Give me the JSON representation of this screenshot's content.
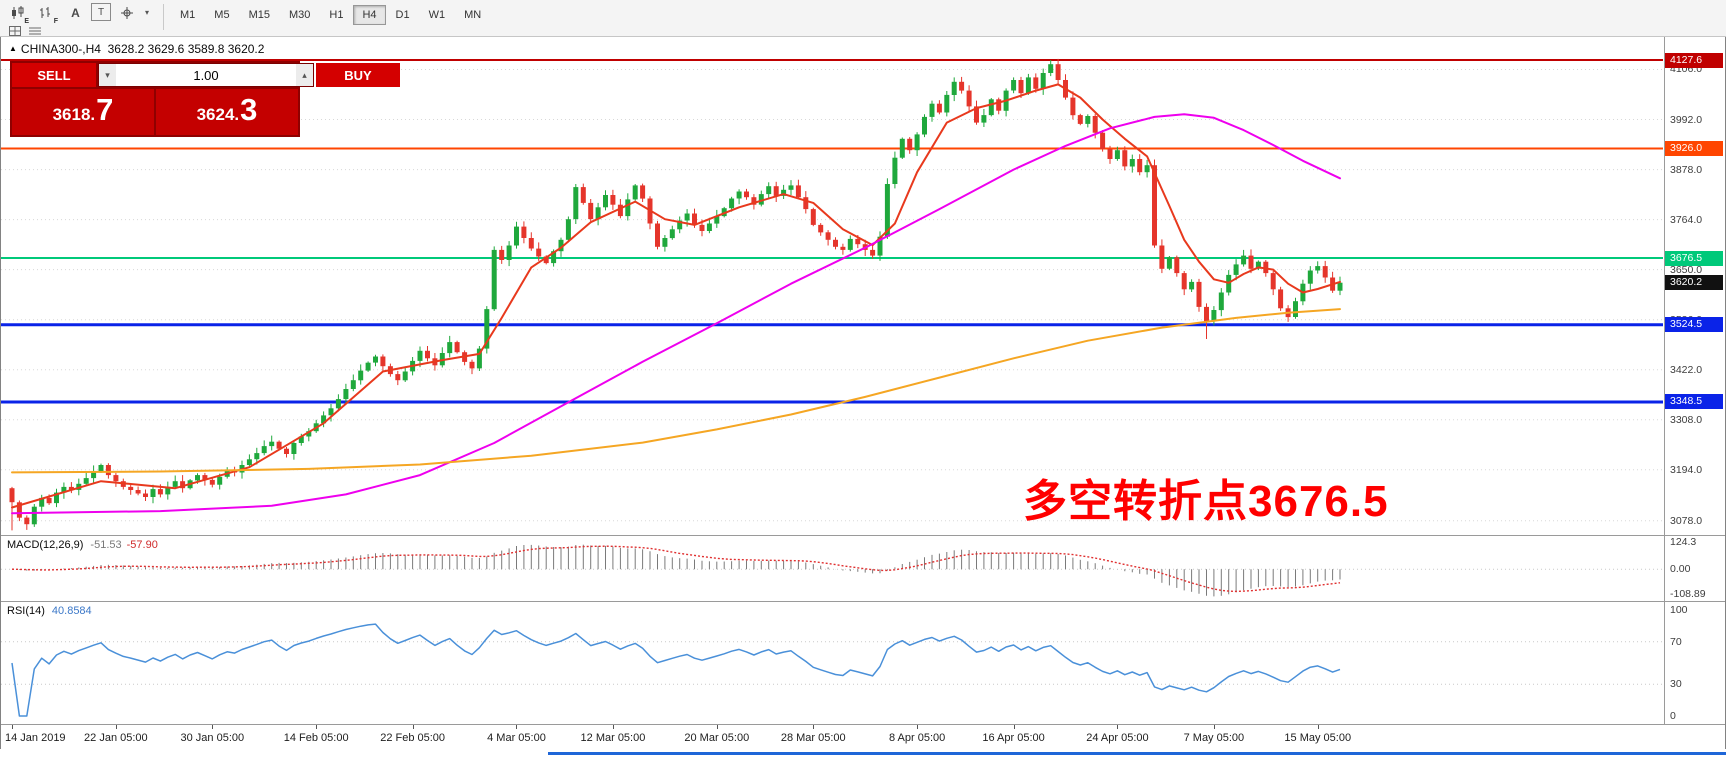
{
  "toolbar": {
    "icon_badges": [
      "E",
      "F"
    ],
    "font_icon_glyph": "A",
    "text_icon_glyph": "T",
    "timeframes": [
      "M1",
      "M5",
      "M15",
      "M30",
      "H1",
      "H4",
      "D1",
      "W1",
      "MN"
    ],
    "active_timeframe": "H4"
  },
  "chart_header": {
    "symbol_line": "CHINA300-,H4  3628.2 3629.6 3589.8 3620.2"
  },
  "trade_panel": {
    "sell_label": "SELL",
    "buy_label": "BUY",
    "volume": "1.00",
    "sell_price": "3618.",
    "sell_price_big": "7",
    "buy_price": "3624.",
    "buy_price_big": "3"
  },
  "annotation": {
    "text": "多空转折点3676.5",
    "color": "#ff0000"
  },
  "colors": {
    "up": "#1fa83c",
    "down": "#e5352b",
    "grid": "#d8d8d8",
    "rsi_line": "#4a90d9",
    "macd_hist": "#7a7a7a",
    "macd_signal": "#e03030"
  },
  "price_scale": {
    "gridline_labels": [
      4106.0,
      3992.0,
      3878.0,
      3764.0,
      3650.0,
      3536.0,
      3422.0,
      3308.0,
      3194.0,
      3078.0
    ]
  },
  "levels": [
    {
      "price": 4127.6,
      "label": "4127.6",
      "color": "#c00000",
      "width": 2
    },
    {
      "price": 3926.0,
      "label": "3926.0",
      "color": "#ff4500",
      "width": 2
    },
    {
      "price": 3676.5,
      "label": "3676.5",
      "color": "#00c97a",
      "width": 2
    },
    {
      "price": 3524.5,
      "label": "3524.5",
      "color": "#0a23e8",
      "width": 3
    },
    {
      "price": 3348.5,
      "label": "3348.5",
      "color": "#0a23e8",
      "width": 3
    }
  ],
  "current_price": {
    "value": 3620.2,
    "label": "3620.2",
    "bg": "#111111"
  },
  "chart_data": {
    "type": "candlestick",
    "symbol": "CHINA300-",
    "timeframe": "H4",
    "ohlc": {
      "open": 3628.2,
      "high": 3629.6,
      "low": 3589.8,
      "close": 3620.2
    },
    "y_range": [
      3050,
      4180
    ],
    "closes": [
      3120,
      3085,
      3070,
      3110,
      3130,
      3118,
      3142,
      3155,
      3148,
      3162,
      3175,
      3190,
      3205,
      3182,
      3168,
      3155,
      3148,
      3140,
      3132,
      3150,
      3138,
      3155,
      3168,
      3152,
      3170,
      3182,
      3171,
      3160,
      3178,
      3192,
      3188,
      3205,
      3218,
      3232,
      3248,
      3258,
      3242,
      3230,
      3255,
      3270,
      3282,
      3300,
      3318,
      3334,
      3355,
      3378,
      3398,
      3420,
      3438,
      3452,
      3430,
      3412,
      3398,
      3418,
      3442,
      3465,
      3448,
      3432,
      3460,
      3485,
      3462,
      3440,
      3425,
      3470,
      3560,
      3695,
      3672,
      3705,
      3748,
      3722,
      3698,
      3680,
      3665,
      3692,
      3718,
      3765,
      3838,
      3802,
      3765,
      3792,
      3820,
      3798,
      3772,
      3810,
      3842,
      3812,
      3755,
      3702,
      3722,
      3742,
      3762,
      3778,
      3752,
      3738,
      3755,
      3772,
      3790,
      3812,
      3828,
      3815,
      3798,
      3822,
      3840,
      3818,
      3832,
      3842,
      3815,
      3788,
      3752,
      3735,
      3718,
      3702,
      3695,
      3720,
      3708,
      3695,
      3682,
      3725,
      3845,
      3905,
      3948,
      3922,
      3958,
      3998,
      4028,
      4008,
      4048,
      4078,
      4058,
      4022,
      3985,
      4002,
      4038,
      4012,
      4058,
      4082,
      4052,
      4088,
      4062,
      4098,
      4118,
      4082,
      4042,
      4002,
      3982,
      4000,
      3962,
      3925,
      3902,
      3922,
      3885,
      3902,
      3872,
      3888,
      3705,
      3652,
      3678,
      3642,
      3605,
      3622,
      3565,
      3532,
      3558,
      3598,
      3638,
      3662,
      3682,
      3652,
      3668,
      3642,
      3605,
      3562,
      3542,
      3578,
      3618,
      3648,
      3658,
      3632,
      3602,
      3620.2
    ],
    "moving_averages": [
      {
        "name": "fast-ma",
        "color": "#e8391d",
        "path": [
          [
            0,
            3108
          ],
          [
            12,
            3168
          ],
          [
            22,
            3152
          ],
          [
            32,
            3200
          ],
          [
            42,
            3300
          ],
          [
            50,
            3418
          ],
          [
            58,
            3444
          ],
          [
            63,
            3458
          ],
          [
            66,
            3540
          ],
          [
            70,
            3655
          ],
          [
            74,
            3700
          ],
          [
            78,
            3758
          ],
          [
            84,
            3805
          ],
          [
            88,
            3765
          ],
          [
            92,
            3752
          ],
          [
            98,
            3792
          ],
          [
            104,
            3822
          ],
          [
            108,
            3802
          ],
          [
            112,
            3742
          ],
          [
            116,
            3706
          ],
          [
            119,
            3755
          ],
          [
            122,
            3872
          ],
          [
            126,
            3985
          ],
          [
            130,
            4018
          ],
          [
            134,
            4035
          ],
          [
            138,
            4058
          ],
          [
            141,
            4072
          ],
          [
            144,
            4042
          ],
          [
            147,
            3992
          ],
          [
            150,
            3948
          ],
          [
            153,
            3908
          ],
          [
            156,
            3795
          ],
          [
            158,
            3718
          ],
          [
            160,
            3668
          ],
          [
            162,
            3628
          ],
          [
            164,
            3620
          ],
          [
            166,
            3640
          ],
          [
            168,
            3655
          ],
          [
            170,
            3650
          ],
          [
            172,
            3618
          ],
          [
            174,
            3598
          ],
          [
            176,
            3606
          ],
          [
            179,
            3622
          ]
        ]
      },
      {
        "name": "mid-ma",
        "color": "#ee00ee",
        "path": [
          [
            0,
            3095
          ],
          [
            20,
            3100
          ],
          [
            35,
            3112
          ],
          [
            45,
            3138
          ],
          [
            55,
            3182
          ],
          [
            65,
            3255
          ],
          [
            75,
            3348
          ],
          [
            85,
            3440
          ],
          [
            95,
            3528
          ],
          [
            105,
            3618
          ],
          [
            115,
            3700
          ],
          [
            125,
            3788
          ],
          [
            135,
            3878
          ],
          [
            142,
            3932
          ],
          [
            148,
            3972
          ],
          [
            154,
            3998
          ],
          [
            158,
            4004
          ],
          [
            162,
            3996
          ],
          [
            166,
            3968
          ],
          [
            170,
            3934
          ],
          [
            174,
            3898
          ],
          [
            179,
            3858
          ]
        ]
      },
      {
        "name": "slow-ma",
        "color": "#f5a623",
        "path": [
          [
            0,
            3188
          ],
          [
            20,
            3190
          ],
          [
            40,
            3196
          ],
          [
            55,
            3206
          ],
          [
            70,
            3226
          ],
          [
            85,
            3256
          ],
          [
            95,
            3286
          ],
          [
            105,
            3320
          ],
          [
            115,
            3360
          ],
          [
            125,
            3404
          ],
          [
            135,
            3448
          ],
          [
            145,
            3488
          ],
          [
            155,
            3518
          ],
          [
            165,
            3540
          ],
          [
            172,
            3552
          ],
          [
            179,
            3560
          ]
        ]
      }
    ],
    "x_axis_labels": [
      "14 Jan 2019",
      "22 Jan 05:00",
      "30 Jan 05:00",
      "14 Feb 05:00",
      "22 Feb 05:00",
      "4 Mar 05:00",
      "12 Mar 05:00",
      "20 Mar 05:00",
      "28 Mar 05:00",
      "8 Apr 05:00",
      "16 Apr 05:00",
      "24 Apr 05:00",
      "7 May 05:00",
      "15 May 05:00"
    ],
    "x_label_indices": [
      0,
      14,
      27,
      41,
      54,
      68,
      81,
      95,
      108,
      122,
      135,
      149,
      162,
      176
    ],
    "macd": {
      "label": "MACD(12,26,9)",
      "value_main": "-51.53",
      "value_signal": "-57.90",
      "params": [
        12,
        26,
        9
      ],
      "scale": [
        {
          "text": "124.3",
          "value": 124.3
        },
        {
          "text": "0.00",
          "value": 0
        },
        {
          "text": "-108.89",
          "value": -108.89
        }
      ]
    },
    "rsi": {
      "label": "RSI(14)",
      "value": "40.8584",
      "period": 14,
      "levels": [
        70,
        30
      ],
      "scale": [
        {
          "text": "100",
          "value": 100
        },
        {
          "text": "70",
          "value": 70
        },
        {
          "text": "30",
          "value": 30
        },
        {
          "text": "0",
          "value": 0
        }
      ]
    }
  }
}
